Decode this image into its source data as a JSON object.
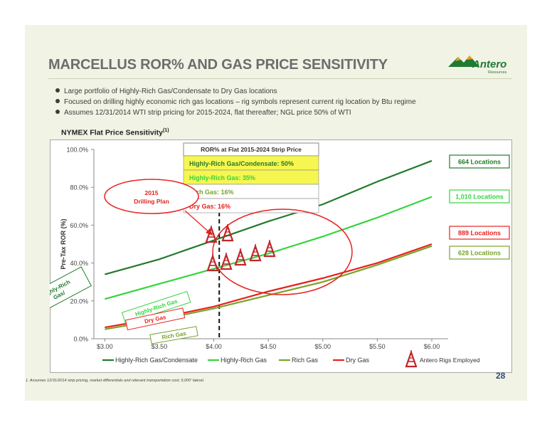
{
  "title": "MARCELLUS ROR% AND GAS PRICE SENSITIVITY",
  "logo": {
    "name": "Antero",
    "sub": "Resources"
  },
  "bullets": [
    "Large portfolio of Highly-Rich Gas/Condensate to Dry Gas locations",
    "Focused on drilling highly economic rich gas locations – rig symbols represent current rig location by Btu regime",
    "Assumes 12/31/2014 WTI strip pricing for 2015-2024, flat thereafter; NGL price 50% of WTI"
  ],
  "chart_title": "NYMEX Flat Price Sensitivity",
  "chart_title_sup": "(1)",
  "chart_data": {
    "type": "line",
    "x": [
      3.0,
      3.5,
      4.0,
      4.5,
      5.0,
      5.5,
      6.0
    ],
    "x_tick_labels": [
      "$3.00",
      "$3.50",
      "$4.00",
      "$4.50",
      "$5.00",
      "$5.50",
      "$6.00"
    ],
    "y_tick_labels": [
      "0.0%",
      "20.0%",
      "40.0%",
      "60.0%",
      "80.0%",
      "100.0%"
    ],
    "y_ticks": [
      0,
      20,
      40,
      60,
      80,
      100
    ],
    "ylabel": "Pre-Tax ROR (%)",
    "xlim": [
      2.9,
      6.15
    ],
    "ylim": [
      0,
      100
    ],
    "series": [
      {
        "name": "Highly-Rich Gas/Condensate",
        "color": "#237a2b",
        "values": [
          34,
          42,
          52,
          62,
          71,
          83,
          94
        ]
      },
      {
        "name": "Highly-Rich Gas",
        "color": "#35d43e",
        "values": [
          21,
          29,
          37,
          45,
          54,
          64,
          75
        ]
      },
      {
        "name": "Rich Gas",
        "color": "#78a32a",
        "values": [
          5,
          10,
          16,
          23,
          30,
          39,
          49
        ]
      },
      {
        "name": "Dry Gas",
        "color": "#e8211d",
        "values": [
          6,
          11,
          17,
          25,
          32,
          40,
          50
        ]
      }
    ],
    "series_labels": [
      "Highly-Rich Gas/ Condensate",
      "Highly-Rich Gas",
      "Dry Gas",
      "Rich Gas"
    ],
    "location_labels": [
      "664 Locations",
      "1,010 Locations",
      "889 Locations",
      "628 Locations"
    ],
    "strip_price": {
      "x": 4.05,
      "title": "ROR% at Flat 2015-2024 Strip Price",
      "rows": [
        "Highly-Rich Gas/Condensate: 50%",
        "Highly-Rich Gas: 35%",
        "Rich Gas: 16%",
        "Dry Gas: 16%"
      ]
    },
    "drilling_plan": "2015 Drilling Plan",
    "rigs_legend": "Antero Rigs Employed",
    "grid": false,
    "legend": "bottom"
  },
  "footnote": "1.  Assumes 12/31/2014 strip pricing, market differentials and relevant transportation cost; 9,000' lateral.",
  "page_number": "28"
}
